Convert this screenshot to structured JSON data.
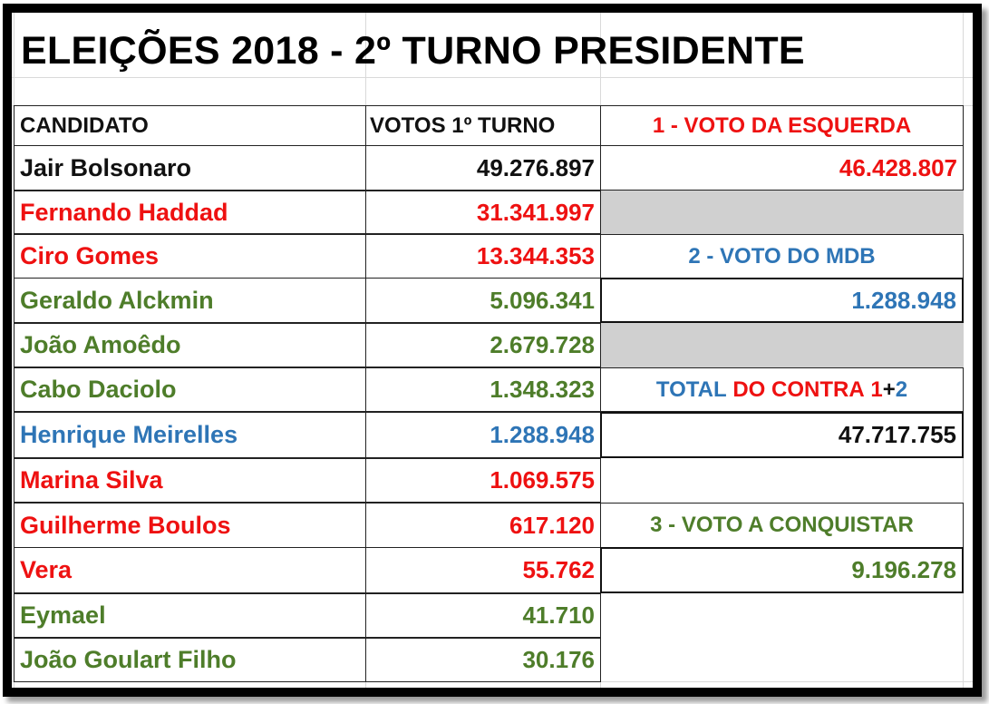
{
  "title": "ELEIÇÕES 2018 - 2º TURNO PRESIDENTE",
  "colors": {
    "black": "#111111",
    "red": "#ee1111",
    "green": "#4e7d2a",
    "blue": "#2e75b6",
    "gray_fill": "#d0d0d0"
  },
  "table": {
    "headers": {
      "candidate": "CANDIDATO",
      "votes": "VOTOS 1º TURNO"
    },
    "rows": [
      {
        "name": "Jair Bolsonaro",
        "votes": "49.276.897",
        "color": "black"
      },
      {
        "name": "Fernando Haddad",
        "votes": "31.341.997",
        "color": "red"
      },
      {
        "name": "Ciro Gomes",
        "votes": "13.344.353",
        "color": "red"
      },
      {
        "name": "Geraldo Alckmin",
        "votes": "5.096.341",
        "color": "green"
      },
      {
        "name": "João Amoêdo",
        "votes": "2.679.728",
        "color": "green"
      },
      {
        "name": "Cabo Daciolo",
        "votes": "1.348.323",
        "color": "green"
      },
      {
        "name": "Henrique Meirelles",
        "votes": "1.288.948",
        "color": "blue"
      },
      {
        "name": "Marina Silva",
        "votes": "1.069.575",
        "color": "red"
      },
      {
        "name": "Guilherme Boulos",
        "votes": "617.120",
        "color": "red"
      },
      {
        "name": "Vera",
        "votes": "55.762",
        "color": "red"
      },
      {
        "name": "Eymael",
        "votes": "41.710",
        "color": "green"
      },
      {
        "name": "João Goulart Filho",
        "votes": "30.176",
        "color": "green"
      }
    ]
  },
  "summary": {
    "left_vote": {
      "label": "1 - VOTO DA ESQUERDA",
      "value": "46.428.807"
    },
    "mdb_vote": {
      "label": "2 - VOTO DO MDB",
      "value": "1.288.948"
    },
    "total_against": {
      "label_part1": "TOTAL",
      "label_part2": "DO CONTRA",
      "label_part3": "1",
      "label_part4": "+",
      "label_part5": "2",
      "value": "47.717.755"
    },
    "to_conquer": {
      "label": "3 - VOTO A CONQUISTAR",
      "value": "9.196.278"
    }
  }
}
